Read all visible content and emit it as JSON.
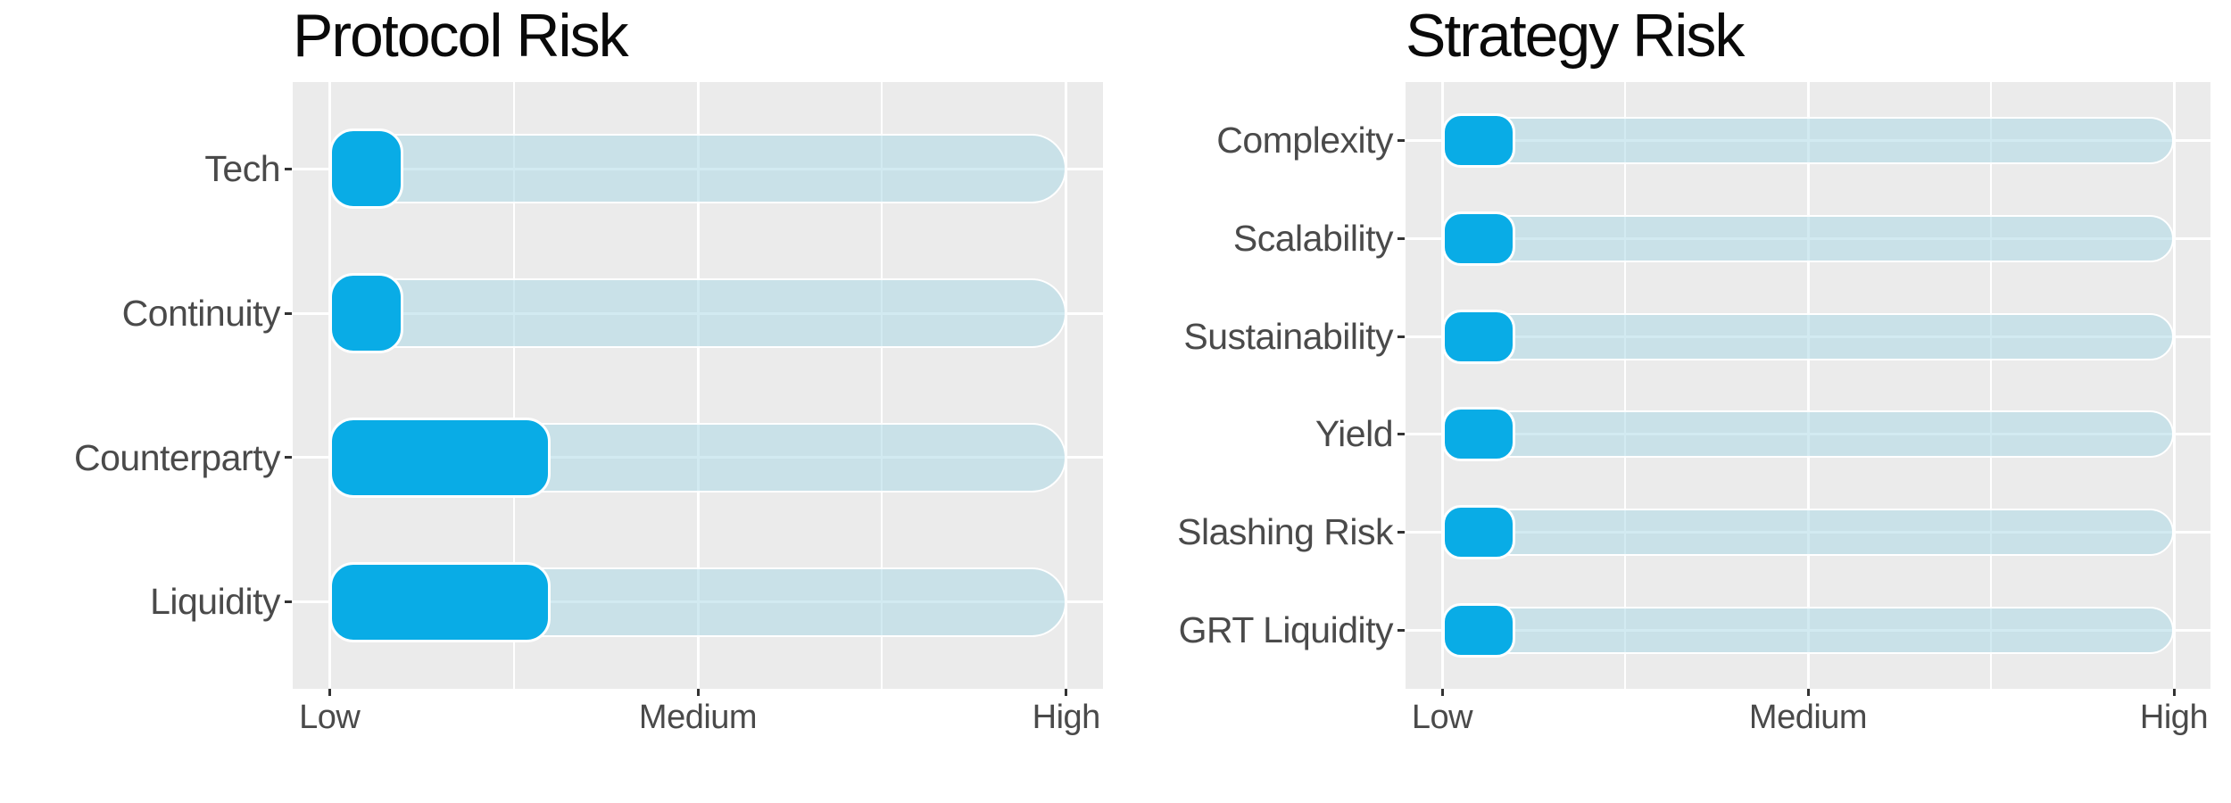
{
  "figure": {
    "background": "#FFFFFF"
  },
  "colors": {
    "bar_fill": "#09ACE6",
    "track_fill": "#ADD8E6",
    "track_alpha": 0.55,
    "bar_stroke": "#FFFFFF",
    "panel_background": "#EBEBEB",
    "gridline": "#FFFFFF",
    "title_text": "#0A0A0A",
    "axis_text": "#4A4A4A",
    "tick_mark": "#333333"
  },
  "chart_data": [
    {
      "type": "bar",
      "orientation": "horizontal",
      "title": "Protocol Risk",
      "categories": [
        "Tech",
        "Continuity",
        "Counterparty",
        "Liquidity"
      ],
      "values": [
        1.2,
        1.2,
        1.6,
        1.6
      ],
      "track_range": [
        1,
        3
      ],
      "x_tick_labels": [
        "Low",
        "Medium",
        "High"
      ],
      "x_tick_values": [
        1,
        2,
        3
      ],
      "xlim": [
        0.9,
        3.1
      ],
      "xlabel": "",
      "ylabel": "",
      "grid": true,
      "legend": "none"
    },
    {
      "type": "bar",
      "orientation": "horizontal",
      "title": "Strategy Risk",
      "categories": [
        "Complexity",
        "Scalability",
        "Sustainability",
        "Yield",
        "Slashing Risk",
        "GRT Liquidity"
      ],
      "values": [
        1.2,
        1.2,
        1.2,
        1.2,
        1.2,
        1.2
      ],
      "track_range": [
        1,
        3
      ],
      "x_tick_labels": [
        "Low",
        "Medium",
        "High"
      ],
      "x_tick_values": [
        1,
        2,
        3
      ],
      "xlim": [
        0.9,
        3.1
      ],
      "xlabel": "",
      "ylabel": "",
      "grid": true,
      "legend": "none"
    }
  ]
}
